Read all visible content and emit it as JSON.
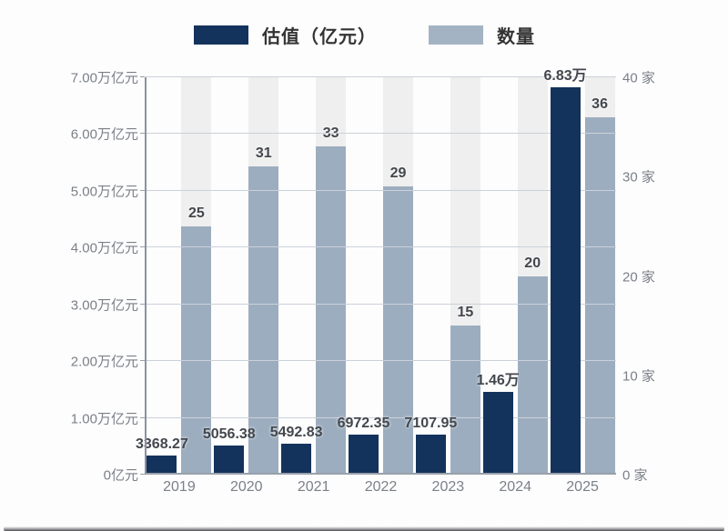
{
  "legend": {
    "items": [
      {
        "label": "估值（亿元）",
        "color": "#14335c"
      },
      {
        "label": "数量",
        "color": "#a3b3c3"
      }
    ]
  },
  "chart_data": {
    "type": "bar",
    "title": "",
    "categories": [
      "2019",
      "2020",
      "2021",
      "2022",
      "2023",
      "2024",
      "2025"
    ],
    "series": [
      {
        "name": "估值（亿元）",
        "axis": "left",
        "color": "#14335c",
        "values": [
          3368.27,
          5056.38,
          5492.83,
          6972.35,
          7107.95,
          14600,
          68300
        ],
        "labels": [
          "3368.27",
          "5056.38",
          "5492.83",
          "6972.35",
          "7107.95",
          "1.46万",
          "6.83万"
        ]
      },
      {
        "name": "数量",
        "axis": "right",
        "color": "#9cadbf",
        "track_color": "#efefef",
        "values": [
          25,
          31,
          33,
          29,
          15,
          20,
          36
        ],
        "labels": [
          "25",
          "31",
          "33",
          "29",
          "15",
          "20",
          "36"
        ]
      }
    ],
    "left_axis": {
      "max": 70000,
      "min": 0,
      "ticks": [
        "0亿元",
        "1.00万亿元",
        "2.00万亿元",
        "3.00万亿元",
        "4.00万亿元",
        "5.00万亿元",
        "6.00万亿元",
        "7.00万亿元"
      ]
    },
    "right_axis": {
      "max": 40,
      "min": 0,
      "ticks": [
        "0 家",
        "10 家",
        "20 家",
        "30 家",
        "40 家"
      ]
    },
    "grid": true,
    "legend_position": "top"
  }
}
